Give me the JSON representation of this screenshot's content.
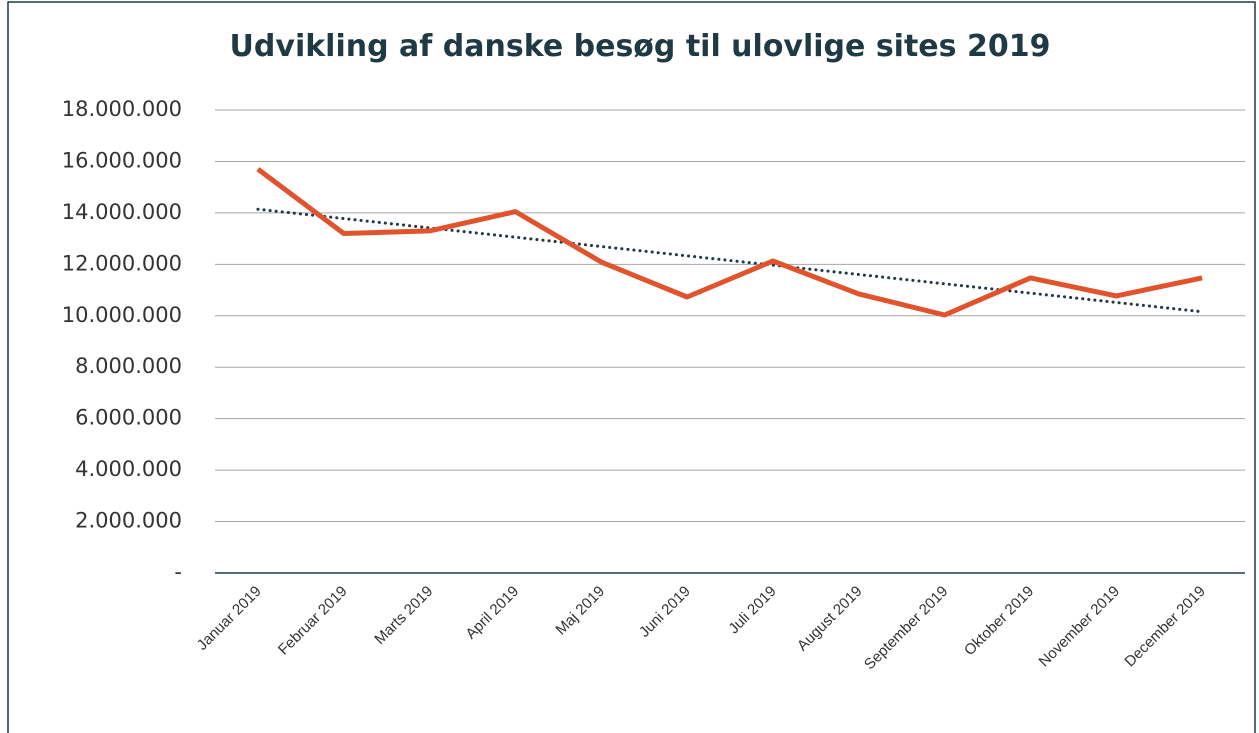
{
  "chart_data": {
    "type": "line",
    "title": "Udvikling af danske besøg til ulovlige sites 2019",
    "categories": [
      "Januar 2019",
      "Februar 2019",
      "Marts 2019",
      "April 2019",
      "Maj 2019",
      "Juni 2019",
      "Juli 2019",
      "August 2019",
      "September 2019",
      "Oktober 2019",
      "November 2019",
      "December 2019"
    ],
    "series": [
      {
        "name": "Besøg",
        "color": "#e0532d",
        "values": [
          15700000,
          13200000,
          13300000,
          14050000,
          12090000,
          10730000,
          12130000,
          10850000,
          10030000,
          11470000,
          10770000,
          11470000
        ]
      }
    ],
    "trendline": {
      "type": "linear",
      "color": "#1f3a44"
    },
    "ylim": [
      0,
      18000000
    ],
    "yticks": [
      {
        "value": 0,
        "label": "-"
      },
      {
        "value": 2000000,
        "label": "2.000.000"
      },
      {
        "value": 4000000,
        "label": "4.000.000"
      },
      {
        "value": 6000000,
        "label": "6.000.000"
      },
      {
        "value": 8000000,
        "label": "8.000.000"
      },
      {
        "value": 10000000,
        "label": "10.000.000"
      },
      {
        "value": 12000000,
        "label": "12.000.000"
      },
      {
        "value": 14000000,
        "label": "14.000.000"
      },
      {
        "value": 16000000,
        "label": "16.000.000"
      },
      {
        "value": 18000000,
        "label": "18.000.000"
      }
    ],
    "grid": true,
    "legend": false
  }
}
